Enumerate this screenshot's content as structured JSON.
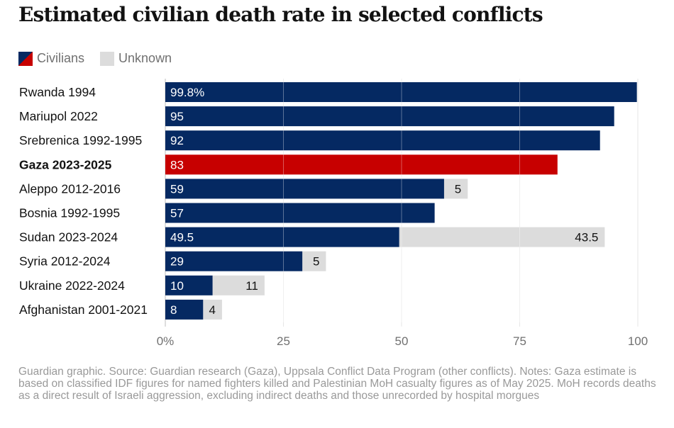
{
  "title": "Estimated civilian death rate in selected conflicts",
  "legend": {
    "civilians": "Civilians",
    "unknown": "Unknown"
  },
  "colors": {
    "civilians": "#052962",
    "highlight": "#c70000",
    "unknown": "#dcdcdc",
    "grid": "#e6e6e6"
  },
  "chart_data": {
    "type": "bar",
    "orientation": "horizontal",
    "stacked": true,
    "categories": [
      "Rwanda 1994",
      "Mariupol 2022",
      "Srebrenica 1992-1995",
      "Gaza 2023-2025",
      "Aleppo 2012-2016",
      "Bosnia 1992-1995",
      "Sudan 2023-2024",
      "Syria 2012-2024",
      "Ukraine 2022-2024",
      "Afghanistan 2001-2021"
    ],
    "highlight_category": "Gaza 2023-2025",
    "series": [
      {
        "name": "Civilians",
        "values": [
          99.8,
          95,
          92,
          83,
          59,
          57,
          49.5,
          29,
          10,
          8
        ],
        "labels": [
          "99.8%",
          "95",
          "92",
          "83",
          "59",
          "57",
          "49.5",
          "29",
          "10",
          "8"
        ]
      },
      {
        "name": "Unknown",
        "values": [
          0,
          0,
          0,
          0,
          5,
          0,
          43.5,
          5,
          11,
          4
        ],
        "labels": [
          "",
          "",
          "",
          "",
          "5",
          "",
          "43.5",
          "5",
          "11",
          "4"
        ]
      }
    ],
    "xlim": [
      0,
      100
    ],
    "xticks": [
      0,
      25,
      50,
      75,
      100
    ],
    "xtick_labels": [
      "0%",
      "25",
      "50",
      "75",
      "100"
    ],
    "grid": true,
    "legend_position": "top-left"
  },
  "footnote": "Guardian graphic. Source: Guardian research (Gaza), Uppsala Conflict Data Program (other conflicts). Notes: Gaza estimate is based on classified IDF figures for named fighters killed and Palestinian MoH casualty figures as of May 2025. MoH records deaths as a direct result of Israeli aggression, excluding indirect deaths and those unrecorded by hospital morgues"
}
